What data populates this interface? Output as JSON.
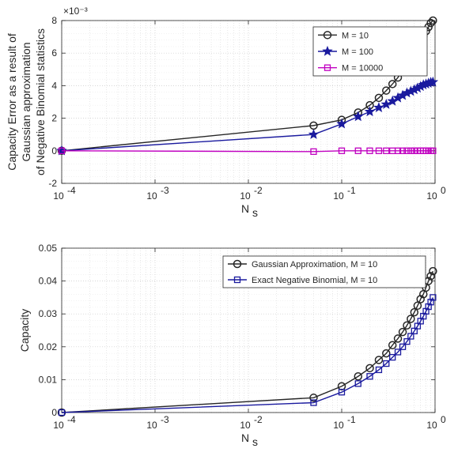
{
  "chart_data": [
    {
      "type": "line",
      "x_scale": "log",
      "xlim": [
        0.0001,
        1
      ],
      "ylim": [
        -2,
        8
      ],
      "y_exponent_label": "×10⁻³",
      "xlabel": "Ns",
      "ylabel_lines": [
        "Capacity Error as a result of",
        "Gaussian approximation",
        "of Negative Binomial statistics"
      ],
      "grid": true,
      "legend_position": "top-right",
      "x_tick_labels": [
        {
          "value": 0.0001,
          "base": "10",
          "exp": "-4"
        },
        {
          "value": 0.001,
          "base": "10",
          "exp": "-3"
        },
        {
          "value": 0.01,
          "base": "10",
          "exp": "-2"
        },
        {
          "value": 0.1,
          "base": "10",
          "exp": "-1"
        },
        {
          "value": 1,
          "base": "10",
          "exp": "0"
        }
      ],
      "y_ticks": [
        -2,
        0,
        2,
        4,
        6,
        8
      ],
      "x": [
        0.0001,
        0.05,
        0.1,
        0.15,
        0.2,
        0.25,
        0.3,
        0.35,
        0.4,
        0.45,
        0.5,
        0.55,
        0.6,
        0.65,
        0.7,
        0.75,
        0.8,
        0.85,
        0.9,
        0.95
      ],
      "series": [
        {
          "name": "M = 10",
          "color": "#262626",
          "marker": "circle",
          "values": [
            0,
            1.55,
            1.9,
            2.35,
            2.8,
            3.25,
            3.7,
            4.1,
            4.5,
            4.9,
            5.3,
            5.7,
            6.05,
            6.4,
            6.75,
            7.05,
            7.35,
            7.6,
            7.85,
            8.0
          ]
        },
        {
          "name": "M = 100",
          "color": "#1a1a9e",
          "marker": "star",
          "values": [
            0,
            1.0,
            1.65,
            2.1,
            2.4,
            2.65,
            2.85,
            3.05,
            3.25,
            3.4,
            3.55,
            3.65,
            3.75,
            3.85,
            3.95,
            4.05,
            4.1,
            4.15,
            4.2,
            4.22
          ]
        },
        {
          "name": "M = 10000",
          "color": "#c000c0",
          "marker": "square",
          "values": [
            0,
            -0.05,
            0,
            0,
            0,
            0,
            0,
            0,
            0,
            0,
            0,
            0,
            0,
            0,
            0,
            0,
            0,
            0,
            0,
            0
          ]
        }
      ]
    },
    {
      "type": "line",
      "x_scale": "log",
      "xlim": [
        0.0001,
        1
      ],
      "ylim": [
        0,
        0.05
      ],
      "xlabel": "Ns",
      "ylabel": "Capacity",
      "grid": true,
      "legend_position": "top-right",
      "x_tick_labels": [
        {
          "value": 0.0001,
          "base": "10",
          "exp": "-4"
        },
        {
          "value": 0.001,
          "base": "10",
          "exp": "-3"
        },
        {
          "value": 0.01,
          "base": "10",
          "exp": "-2"
        },
        {
          "value": 0.1,
          "base": "10",
          "exp": "-1"
        },
        {
          "value": 1,
          "base": "10",
          "exp": "0"
        }
      ],
      "y_ticks": [
        {
          "value": 0,
          "label": "0"
        },
        {
          "value": 0.01,
          "label": "0.01"
        },
        {
          "value": 0.02,
          "label": "0.02"
        },
        {
          "value": 0.03,
          "label": "0.03"
        },
        {
          "value": 0.04,
          "label": "0.04"
        },
        {
          "value": 0.05,
          "label": "0.05"
        }
      ],
      "x": [
        0.0001,
        0.05,
        0.1,
        0.15,
        0.2,
        0.25,
        0.3,
        0.35,
        0.4,
        0.45,
        0.5,
        0.55,
        0.6,
        0.65,
        0.7,
        0.75,
        0.8,
        0.85,
        0.9,
        0.95
      ],
      "series": [
        {
          "name": "Gaussian Approximation, M = 10",
          "color": "#262626",
          "marker": "circle",
          "values": [
            0,
            0.0045,
            0.008,
            0.011,
            0.0135,
            0.016,
            0.018,
            0.0205,
            0.0225,
            0.0245,
            0.0265,
            0.0285,
            0.0305,
            0.0325,
            0.0345,
            0.036,
            0.038,
            0.04,
            0.0415,
            0.043
          ]
        },
        {
          "name": "Exact Negative Binomial, M = 10",
          "color": "#1a1a9e",
          "marker": "square",
          "values": [
            0,
            0.003,
            0.0062,
            0.0088,
            0.011,
            0.013,
            0.0149,
            0.0168,
            0.0184,
            0.02,
            0.0216,
            0.0232,
            0.0248,
            0.0263,
            0.0278,
            0.0293,
            0.0308,
            0.0322,
            0.0336,
            0.035
          ]
        }
      ]
    }
  ]
}
